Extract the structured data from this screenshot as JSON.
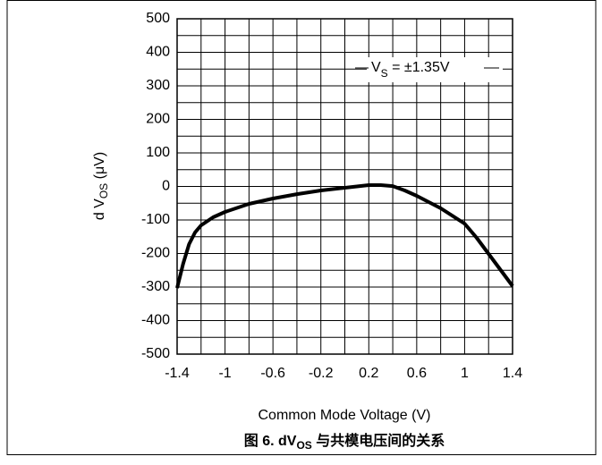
{
  "chart_data": {
    "type": "line",
    "ylabel_main": "d V",
    "ylabel_sub": "OS",
    "ylabel_tail": " (μV)",
    "xlabel": "Common Mode Voltage (V)",
    "caption_main": "图 6. dV",
    "caption_sub": "OS",
    "caption_tail": " 与共模电压间的关系",
    "annotation_main": "V",
    "annotation_sub": "S",
    "annotation_tail": " = ±1.35V",
    "xlim": [
      -1.4,
      1.4
    ],
    "ylim": [
      -500,
      500
    ],
    "xticks": [
      -1.4,
      -1,
      -0.6,
      -0.2,
      0.2,
      0.6,
      1,
      1.4
    ],
    "x_minor_ticks": [
      -1.2,
      -0.8,
      -0.4,
      0,
      0.4,
      0.8,
      1.2
    ],
    "yticks": [
      -500,
      -400,
      -300,
      -200,
      -100,
      0,
      100,
      200,
      300,
      400,
      500
    ],
    "y_minor_ticks": [
      -450,
      -350,
      -250,
      -150,
      -50,
      50,
      150,
      250,
      350,
      450
    ],
    "grid": true,
    "series": [
      {
        "color": "#000000",
        "x": [
          -1.4,
          -1.35,
          -1.3,
          -1.25,
          -1.2,
          -1.1,
          -1.0,
          -0.8,
          -0.6,
          -0.4,
          -0.2,
          0,
          0.2,
          0.3,
          0.4,
          0.5,
          0.6,
          0.8,
          1.0,
          1.1,
          1.2,
          1.3,
          1.4
        ],
        "values": [
          -303,
          -231,
          -172,
          -137,
          -116,
          -92,
          -76,
          -52,
          -36,
          -23,
          -12,
          -4,
          4,
          4,
          1,
          -12,
          -28,
          -65,
          -111,
          -153,
          -201,
          -249,
          -297
        ]
      }
    ]
  }
}
